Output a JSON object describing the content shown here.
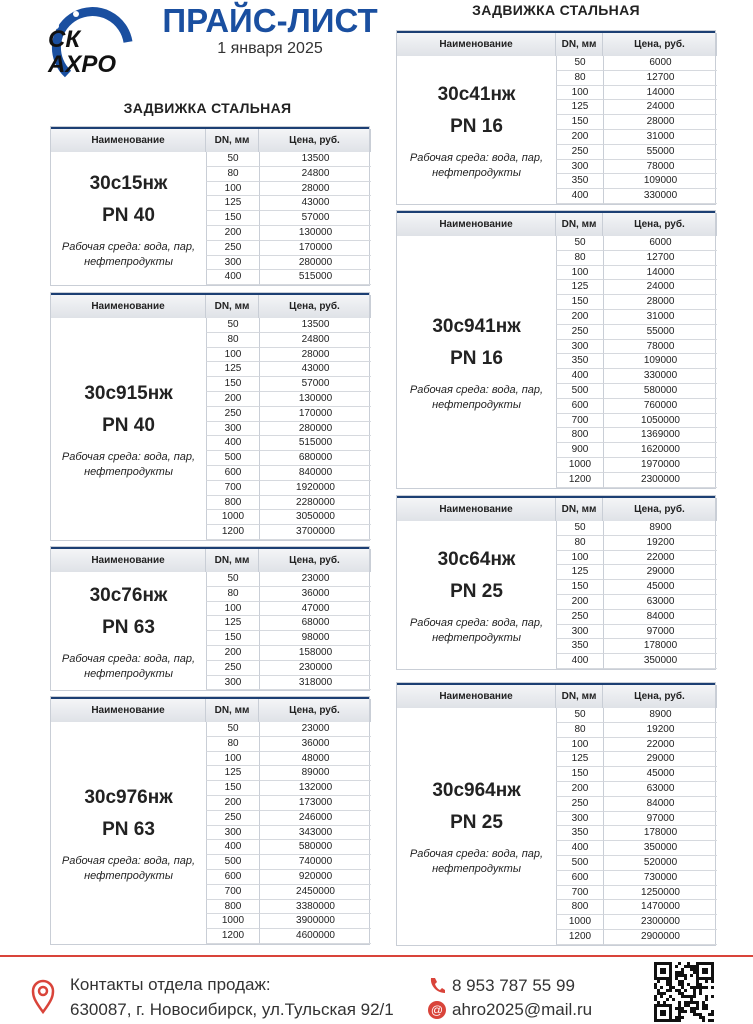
{
  "header": {
    "logo_top": "СК",
    "logo_bottom": "АХРО",
    "title": "ПРАЙС-ЛИСТ",
    "date": "1 января 2025"
  },
  "left": {
    "heading": "ЗАДВИЖКА СТАЛЬНАЯ",
    "tables": [
      {
        "header": [
          "Наименование",
          "DN, мм",
          "Цена, руб."
        ],
        "name": "30с15нж",
        "pn": "PN 40",
        "medium": "Рабочая среда: вода, пар, нефтепродукты",
        "rows": [
          [
            50,
            13500
          ],
          [
            80,
            24800
          ],
          [
            100,
            28000
          ],
          [
            125,
            43000
          ],
          [
            150,
            57000
          ],
          [
            200,
            130000
          ],
          [
            250,
            170000
          ],
          [
            300,
            280000
          ],
          [
            400,
            515000
          ]
        ]
      },
      {
        "header": [
          "Наименование",
          "DN, мм",
          "Цена, руб."
        ],
        "name": "30с915нж",
        "pn": "PN 40",
        "medium": "Рабочая среда: вода, пар, нефтепродукты",
        "rows": [
          [
            50,
            13500
          ],
          [
            80,
            24800
          ],
          [
            100,
            28000
          ],
          [
            125,
            43000
          ],
          [
            150,
            57000
          ],
          [
            200,
            130000
          ],
          [
            250,
            170000
          ],
          [
            300,
            280000
          ],
          [
            400,
            515000
          ],
          [
            500,
            680000
          ],
          [
            600,
            840000
          ],
          [
            700,
            1920000
          ],
          [
            800,
            2280000
          ],
          [
            1000,
            3050000
          ],
          [
            1200,
            3700000
          ]
        ]
      },
      {
        "header": [
          "Наименование",
          "DN, мм",
          "Цена, руб."
        ],
        "name": "30с76нж",
        "pn": "PN 63",
        "medium": "Рабочая среда: вода, пар, нефтепродукты",
        "rows": [
          [
            50,
            23000
          ],
          [
            80,
            36000
          ],
          [
            100,
            47000
          ],
          [
            125,
            68000
          ],
          [
            150,
            98000
          ],
          [
            200,
            158000
          ],
          [
            250,
            230000
          ],
          [
            300,
            318000
          ]
        ]
      },
      {
        "header": [
          "Наименование",
          "DN, мм",
          "Цена, руб."
        ],
        "name": "30с976нж",
        "pn": "PN 63",
        "medium": "Рабочая среда: вода, пар, нефтепродукты",
        "rows": [
          [
            50,
            23000
          ],
          [
            80,
            36000
          ],
          [
            100,
            48000
          ],
          [
            125,
            89000
          ],
          [
            150,
            132000
          ],
          [
            200,
            173000
          ],
          [
            250,
            246000
          ],
          [
            300,
            343000
          ],
          [
            400,
            580000
          ],
          [
            500,
            740000
          ],
          [
            600,
            920000
          ],
          [
            700,
            2450000
          ],
          [
            800,
            3380000
          ],
          [
            1000,
            3900000
          ],
          [
            1200,
            4600000
          ]
        ]
      }
    ]
  },
  "right": {
    "heading": "ЗАДВИЖКА СТАЛЬНАЯ",
    "tables": [
      {
        "header": [
          "Наименование",
          "DN, мм",
          "Цена, руб."
        ],
        "name": "30с41нж",
        "pn": "PN 16",
        "medium": "Рабочая среда: вода, пар, нефтепродукты",
        "rows": [
          [
            50,
            6000
          ],
          [
            80,
            12700
          ],
          [
            100,
            14000
          ],
          [
            125,
            24000
          ],
          [
            150,
            28000
          ],
          [
            200,
            31000
          ],
          [
            250,
            55000
          ],
          [
            300,
            78000
          ],
          [
            350,
            109000
          ],
          [
            400,
            330000
          ]
        ]
      },
      {
        "header": [
          "Наименование",
          "DN, мм",
          "Цена, руб."
        ],
        "name": "30с941нж",
        "pn": "PN 16",
        "medium": "Рабочая среда: вода, пар, нефтепродукты",
        "rows": [
          [
            50,
            6000
          ],
          [
            80,
            12700
          ],
          [
            100,
            14000
          ],
          [
            125,
            24000
          ],
          [
            150,
            28000
          ],
          [
            200,
            31000
          ],
          [
            250,
            55000
          ],
          [
            300,
            78000
          ],
          [
            350,
            109000
          ],
          [
            400,
            330000
          ],
          [
            500,
            580000
          ],
          [
            600,
            760000
          ],
          [
            700,
            1050000
          ],
          [
            800,
            1369000
          ],
          [
            900,
            1620000
          ],
          [
            1000,
            1970000
          ],
          [
            1200,
            2300000
          ]
        ]
      },
      {
        "header": [
          "Наименование",
          "DN, мм",
          "Цена, руб."
        ],
        "name": "30с64нж",
        "pn": "PN 25",
        "medium": "Рабочая среда: вода, пар, нефтепродукты",
        "rows": [
          [
            50,
            8900
          ],
          [
            80,
            19200
          ],
          [
            100,
            22000
          ],
          [
            125,
            29000
          ],
          [
            150,
            45000
          ],
          [
            200,
            63000
          ],
          [
            250,
            84000
          ],
          [
            300,
            97000
          ],
          [
            350,
            178000
          ],
          [
            400,
            350000
          ]
        ]
      },
      {
        "header": [
          "Наименование",
          "DN, мм",
          "Цена, руб."
        ],
        "name": "30с964нж",
        "pn": "PN 25",
        "medium": "Рабочая среда: вода, пар, нефтепродукты",
        "rows": [
          [
            50,
            8900
          ],
          [
            80,
            19200
          ],
          [
            100,
            22000
          ],
          [
            125,
            29000
          ],
          [
            150,
            45000
          ],
          [
            200,
            63000
          ],
          [
            250,
            84000
          ],
          [
            300,
            97000
          ],
          [
            350,
            178000
          ],
          [
            400,
            350000
          ],
          [
            500,
            520000
          ],
          [
            600,
            730000
          ],
          [
            700,
            1250000
          ],
          [
            800,
            1470000
          ],
          [
            1000,
            2300000
          ],
          [
            1200,
            2900000
          ]
        ]
      }
    ]
  },
  "footer": {
    "contacts_label": "Контакты отдела продаж:",
    "address": "630087, г. Новосибирск, ул.Тульская 92/1",
    "phone": "8 953 787 55 99",
    "email": "ahro2025@mail.ru"
  }
}
